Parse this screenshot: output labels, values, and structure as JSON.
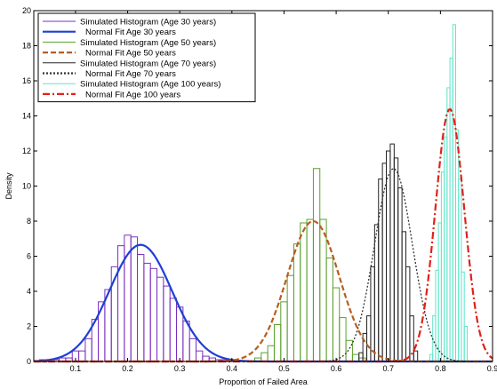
{
  "chart_data": {
    "type": "bar",
    "xlabel": "Proportion of Failed Area",
    "ylabel": "Density",
    "xlim": [
      0.02,
      0.9
    ],
    "ylim": [
      0,
      20
    ],
    "x_ticks": [
      "0.1",
      "0.2",
      "0.3",
      "0.4",
      "0.5",
      "0.6",
      "0.7",
      "0.8",
      "0.9"
    ],
    "y_ticks": [
      "0",
      "2",
      "4",
      "6",
      "8",
      "10",
      "12",
      "14",
      "16",
      "18",
      "20"
    ],
    "grid": false,
    "legend_position": "top-left",
    "series": [
      {
        "name": "Simulated Histogram (Age 30 years)",
        "kind": "histogram",
        "color": "#7b2fbf",
        "bin_width": 0.0125,
        "x": [
          0.0375,
          0.05,
          0.0625,
          0.075,
          0.0875,
          0.1,
          0.1125,
          0.125,
          0.1375,
          0.15,
          0.1625,
          0.175,
          0.1875,
          0.2,
          0.2125,
          0.225,
          0.2375,
          0.25,
          0.2625,
          0.275,
          0.2875,
          0.3,
          0.3125,
          0.325,
          0.3375,
          0.35,
          0.3625,
          0.375,
          0.3875
        ],
        "values": [
          0.1,
          0.1,
          0.1,
          0.2,
          0.2,
          0.6,
          0.6,
          1.3,
          2.4,
          3.4,
          4.1,
          5.4,
          6.6,
          7.2,
          7.1,
          6.1,
          5.6,
          5.3,
          4.8,
          4.3,
          3.6,
          3.1,
          2.3,
          1.3,
          0.6,
          0.3,
          0.2,
          0.1,
          0.1
        ]
      },
      {
        "name": "Normal Fit Age 30 years",
        "kind": "normal",
        "color": "#1f3fd6",
        "mean": 0.225,
        "std": 0.06,
        "peak": 6.65
      },
      {
        "name": "Simulated Histogram (Age 50 years)",
        "kind": "histogram",
        "color": "#5aa02c",
        "bin_width": 0.0125,
        "x": [
          0.45,
          0.4625,
          0.475,
          0.4875,
          0.5,
          0.5125,
          0.525,
          0.5375,
          0.55,
          0.5625,
          0.575,
          0.5875,
          0.6,
          0.6125,
          0.625,
          0.6375,
          0.65
        ],
        "values": [
          0.2,
          0.5,
          0.9,
          2.1,
          3.4,
          4.9,
          6.7,
          7.9,
          8.1,
          11.0,
          8.1,
          5.9,
          4.2,
          2.5,
          1.2,
          0.4,
          0.2
        ]
      },
      {
        "name": "Normal Fit Age 50 years",
        "kind": "normal",
        "color": "#b85e1f",
        "mean": 0.556,
        "std": 0.05,
        "peak": 8.0
      },
      {
        "name": "Simulated Histogram (Age 70 years)",
        "kind": "histogram",
        "color": "#222222",
        "bin_width": 0.0075,
        "x": [
          0.6475,
          0.655,
          0.6625,
          0.67,
          0.6775,
          0.685,
          0.6925,
          0.7,
          0.7075,
          0.715,
          0.7225,
          0.73,
          0.7375,
          0.745,
          0.7525
        ],
        "values": [
          0.5,
          1.6,
          2.6,
          5.4,
          7.8,
          10.4,
          11.3,
          12.0,
          12.4,
          11.6,
          9.9,
          7.4,
          5.4,
          2.6,
          0.6
        ]
      },
      {
        "name": "Normal Fit Age 70 years",
        "kind": "normal",
        "color": "#333333",
        "mean": 0.71,
        "std": 0.0363,
        "peak": 11.0
      },
      {
        "name": "Simulated Histogram (Age 100 years)",
        "kind": "histogram",
        "color": "#5ee6c8",
        "bin_width": 0.0055,
        "x": [
          0.7825,
          0.788,
          0.7935,
          0.799,
          0.8045,
          0.81,
          0.8155,
          0.821,
          0.8265,
          0.832,
          0.8375,
          0.843,
          0.8485
        ],
        "values": [
          0.4,
          2.6,
          5.2,
          7.9,
          10.8,
          12.8,
          15.6,
          17.3,
          19.2,
          13.2,
          10.4,
          5.1,
          2.0
        ]
      },
      {
        "name": "Normal Fit Age 100 years",
        "kind": "normal",
        "color": "#e0221a",
        "mean": 0.818,
        "std": 0.0276,
        "peak": 14.4
      }
    ]
  }
}
